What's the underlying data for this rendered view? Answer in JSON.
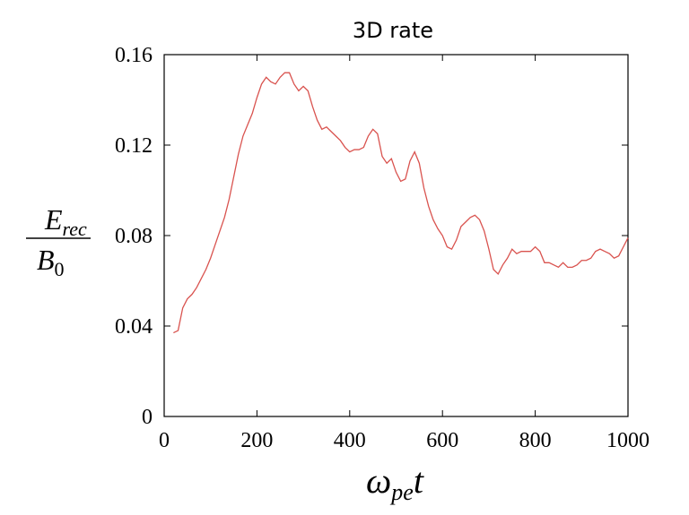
{
  "chart_data": {
    "type": "line",
    "title": "3D rate",
    "xlabel": {
      "main": "ω",
      "sub": "pe",
      "tail": "t"
    },
    "ylabel": {
      "num_main": "E",
      "num_sub": "rec",
      "den_main": "B",
      "den_sub": "0"
    },
    "xlim": [
      0,
      1000
    ],
    "ylim": [
      0,
      0.16
    ],
    "xticks": [
      0,
      200,
      400,
      600,
      800,
      1000
    ],
    "yticks": [
      0,
      0.04,
      0.08,
      0.12,
      0.16
    ],
    "xtick_labels": [
      "0",
      "200",
      "400",
      "600",
      "800",
      "1000"
    ],
    "ytick_labels": [
      "0",
      "0.04",
      "0.08",
      "0.12",
      "0.16"
    ],
    "grid": false,
    "series": [
      {
        "color": "#d9534f",
        "x": [
          20,
          30,
          40,
          50,
          60,
          70,
          80,
          90,
          100,
          110,
          120,
          130,
          140,
          150,
          160,
          170,
          180,
          190,
          200,
          210,
          220,
          230,
          240,
          250,
          260,
          270,
          280,
          290,
          300,
          310,
          320,
          330,
          340,
          350,
          360,
          370,
          380,
          390,
          400,
          410,
          420,
          430,
          440,
          450,
          460,
          470,
          480,
          490,
          500,
          510,
          520,
          530,
          540,
          550,
          560,
          570,
          580,
          590,
          600,
          610,
          620,
          630,
          640,
          650,
          660,
          670,
          680,
          690,
          700,
          710,
          720,
          730,
          740,
          750,
          760,
          770,
          780,
          790,
          800,
          810,
          820,
          830,
          840,
          850,
          860,
          870,
          880,
          890,
          900,
          910,
          920,
          930,
          940,
          950,
          960,
          970,
          980,
          990,
          1000
        ],
        "y": [
          0.037,
          0.038,
          0.048,
          0.052,
          0.054,
          0.057,
          0.061,
          0.065,
          0.07,
          0.076,
          0.082,
          0.088,
          0.096,
          0.106,
          0.116,
          0.124,
          0.129,
          0.134,
          0.141,
          0.147,
          0.15,
          0.148,
          0.147,
          0.15,
          0.152,
          0.152,
          0.147,
          0.144,
          0.146,
          0.144,
          0.137,
          0.131,
          0.127,
          0.128,
          0.126,
          0.124,
          0.122,
          0.119,
          0.117,
          0.118,
          0.118,
          0.119,
          0.124,
          0.127,
          0.125,
          0.115,
          0.112,
          0.114,
          0.108,
          0.104,
          0.105,
          0.113,
          0.117,
          0.112,
          0.101,
          0.093,
          0.087,
          0.083,
          0.08,
          0.075,
          0.074,
          0.078,
          0.084,
          0.086,
          0.088,
          0.089,
          0.087,
          0.082,
          0.074,
          0.065,
          0.063,
          0.067,
          0.07,
          0.074,
          0.072,
          0.073,
          0.073,
          0.073,
          0.075,
          0.073,
          0.068,
          0.068,
          0.067,
          0.066,
          0.068,
          0.066,
          0.066,
          0.067,
          0.069,
          0.069,
          0.07,
          0.073,
          0.074,
          0.073,
          0.072,
          0.07,
          0.071,
          0.075,
          0.079
        ]
      }
    ]
  }
}
